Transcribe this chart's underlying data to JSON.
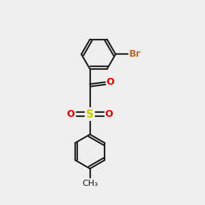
{
  "bg_color": "#eeeeee",
  "bond_color": "#1a1a1a",
  "bond_width": 1.6,
  "br_color": "#b87333",
  "o_color": "#ee0000",
  "s_color": "#cccc00",
  "br_label": "Br",
  "o_label": "O",
  "s_label": "S",
  "font_size_atom": 10,
  "font_size_me": 9
}
